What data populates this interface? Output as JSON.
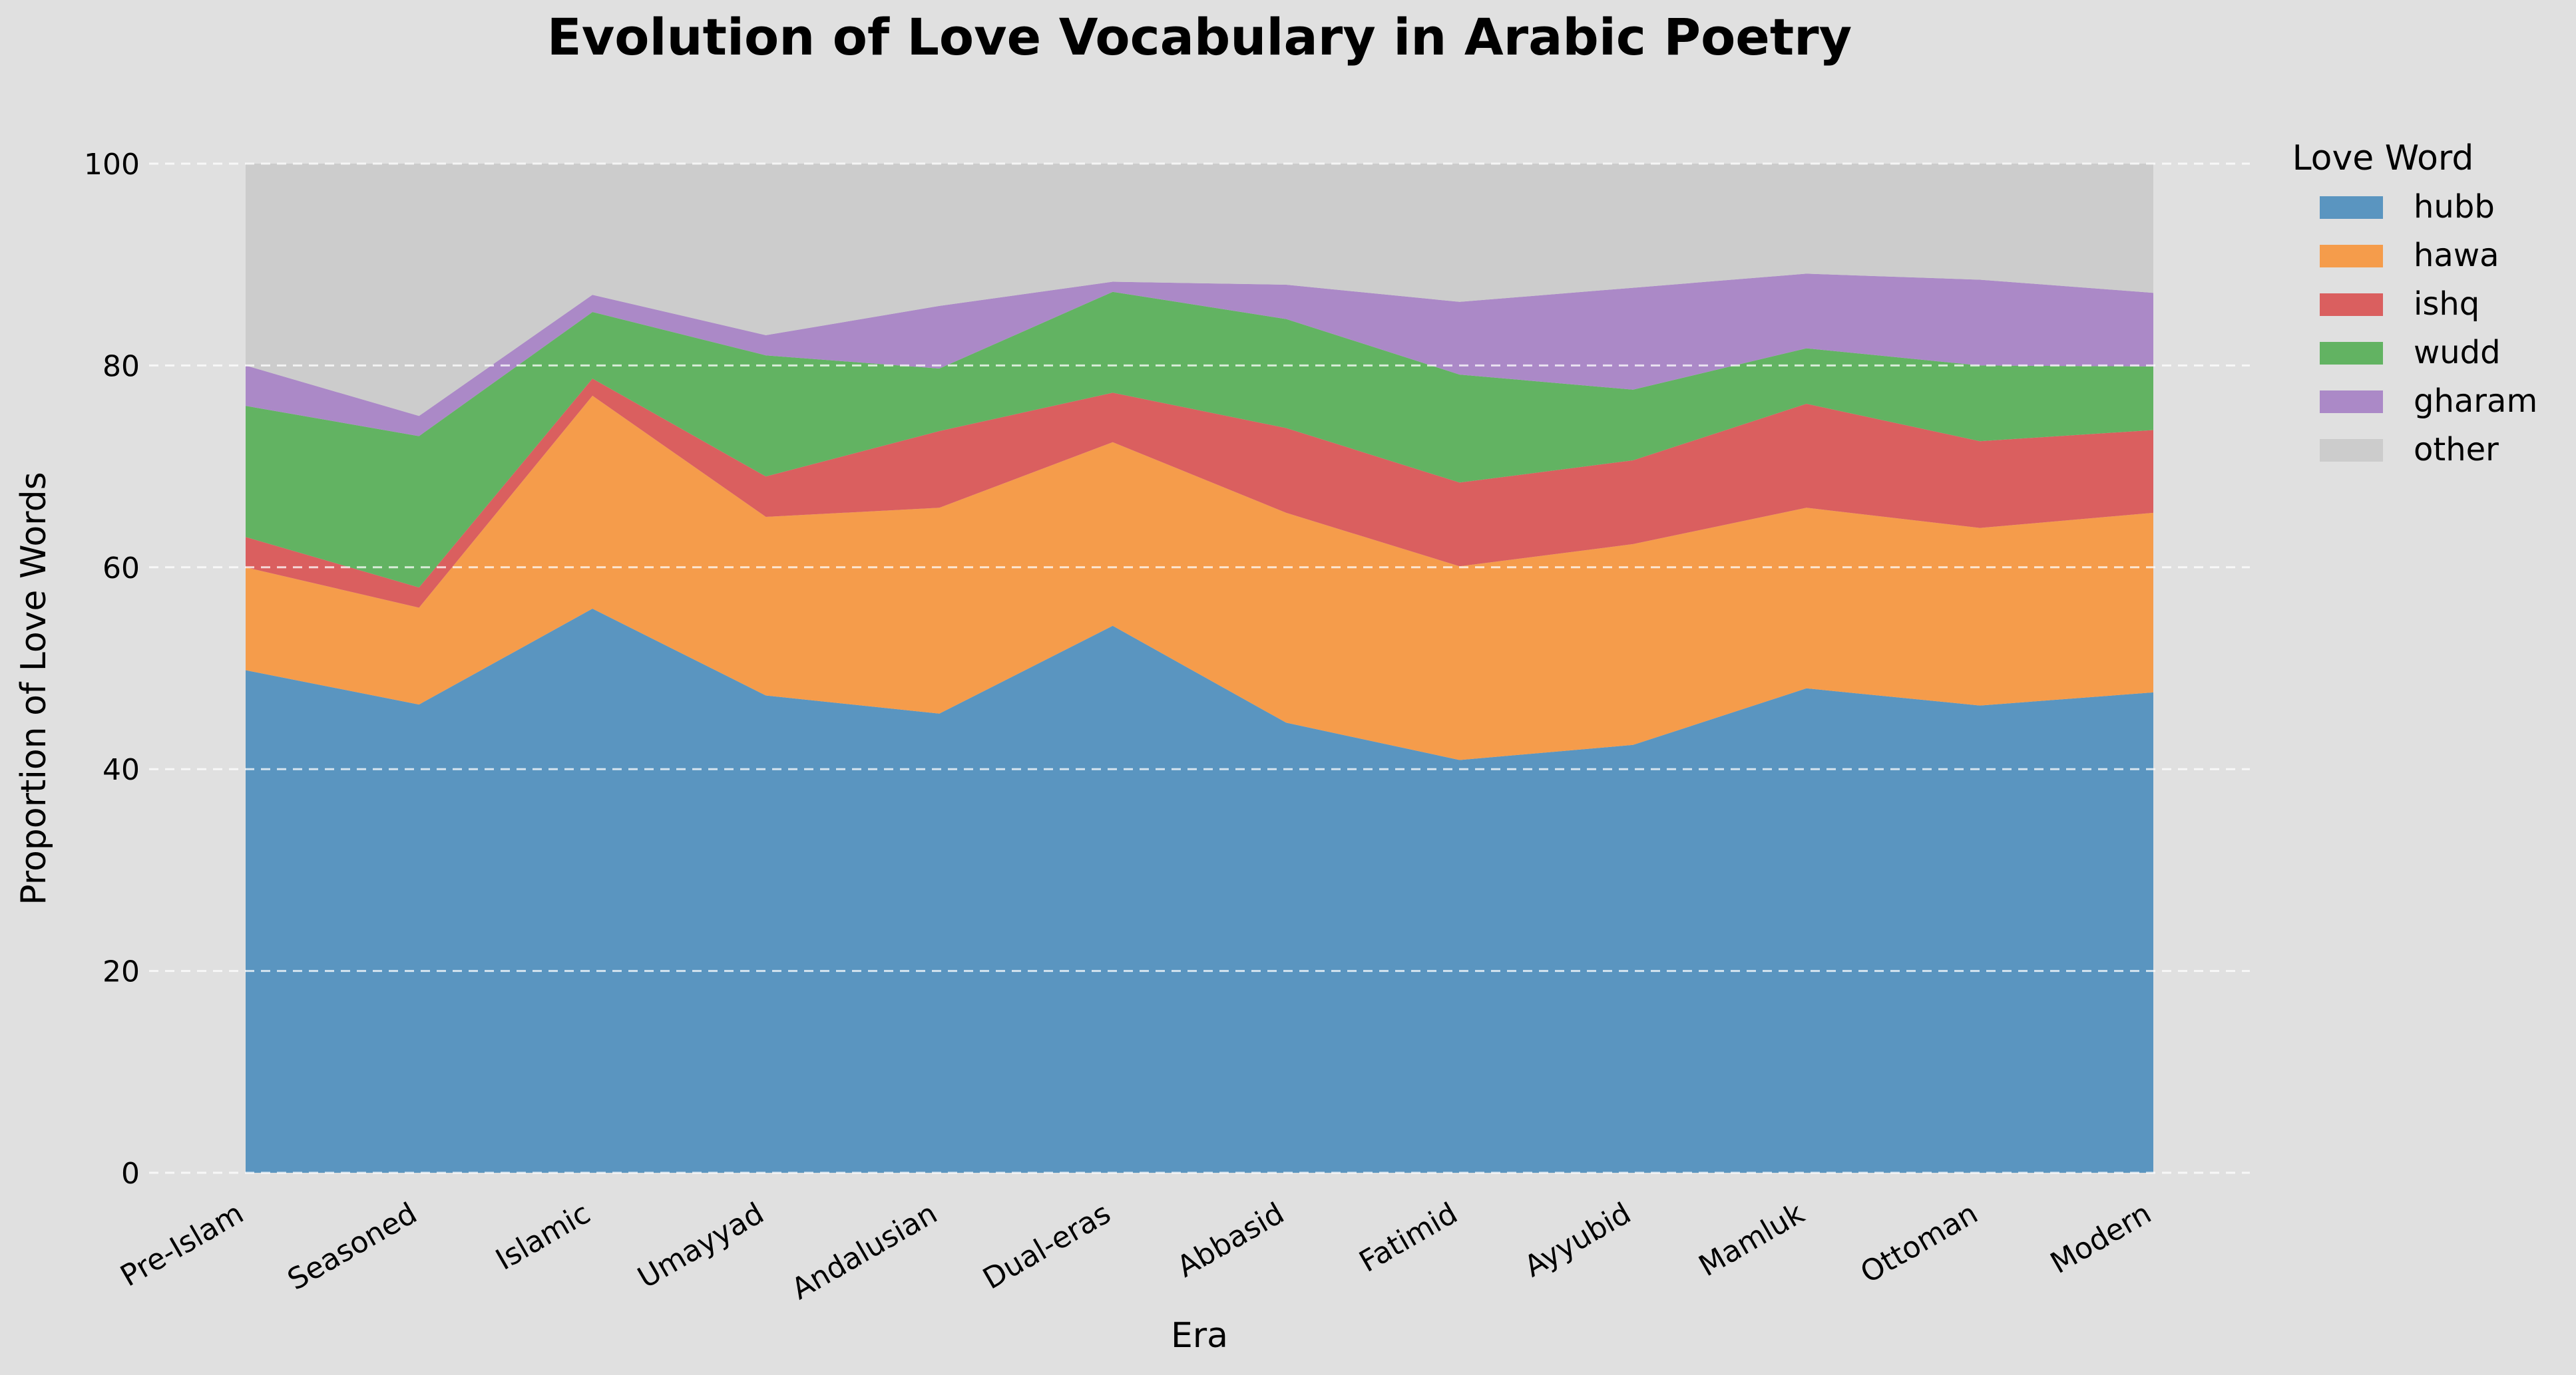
{
  "chart_data": {
    "type": "area",
    "stacked": true,
    "title": "Evolution of Love Vocabulary in Arabic Poetry",
    "xlabel": "Era",
    "ylabel": "Proportion of Love Words",
    "ylim": [
      0,
      100
    ],
    "yticks": [
      0,
      20,
      40,
      60,
      80,
      100
    ],
    "grid": true,
    "legend": {
      "title": "Love Word",
      "position": "outside-right"
    },
    "categories": [
      "Pre-Islam",
      "Seasoned",
      "Islamic",
      "Umayyad",
      "Andalusian",
      "Dual-eras",
      "Abbasid",
      "Fatimid",
      "Ayyubid",
      "Mamluk",
      "Ottoman",
      "Modern"
    ],
    "series": [
      {
        "name": "hubb",
        "color": "#5a95c0",
        "values": [
          49.8,
          46.4,
          55.9,
          47.3,
          45.5,
          54.2,
          44.6,
          40.9,
          42.4,
          48.0,
          46.3,
          47.6
        ]
      },
      {
        "name": "hawa",
        "color": "#f59c4b",
        "values": [
          10.2,
          9.6,
          21.1,
          17.7,
          20.4,
          18.2,
          20.8,
          19.2,
          19.9,
          17.9,
          17.6,
          17.8
        ]
      },
      {
        "name": "ishq",
        "color": "#da5f5f",
        "values": [
          3.0,
          2.0,
          1.7,
          4.0,
          7.6,
          4.9,
          8.4,
          8.3,
          8.3,
          10.3,
          8.6,
          8.2
        ]
      },
      {
        "name": "wudd",
        "color": "#62b362",
        "values": [
          13.0,
          15.0,
          6.6,
          12.0,
          6.2,
          10.0,
          10.8,
          10.7,
          7.0,
          5.5,
          7.5,
          6.3
        ]
      },
      {
        "name": "gharam",
        "color": "#ab89c7",
        "values": [
          4.0,
          2.0,
          1.7,
          2.0,
          6.2,
          1.0,
          3.4,
          7.2,
          10.1,
          7.4,
          8.5,
          7.3
        ]
      },
      {
        "name": "other",
        "color": "#cccccc",
        "values": [
          20.0,
          25.0,
          13.0,
          17.0,
          14.1,
          11.7,
          12.0,
          13.7,
          12.3,
          10.9,
          11.5,
          12.8
        ]
      }
    ]
  }
}
